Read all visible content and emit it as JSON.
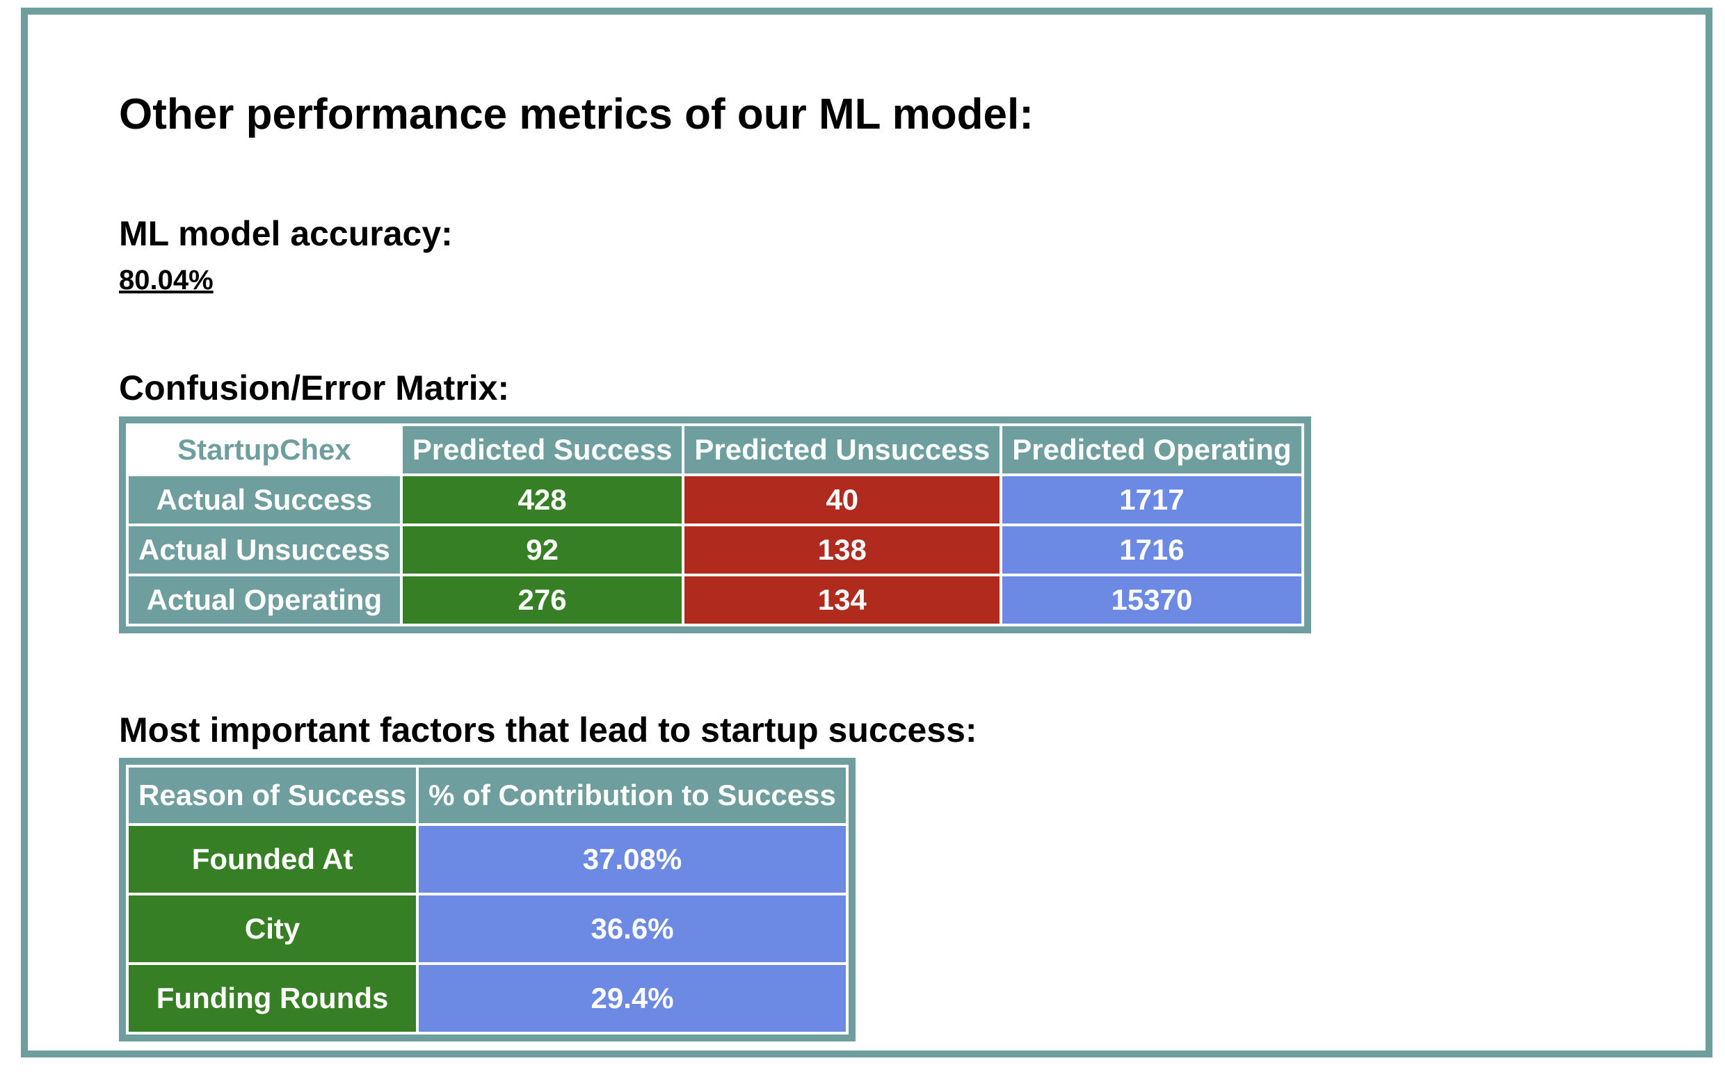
{
  "title": "Other performance metrics of our ML model:",
  "accuracy": {
    "heading": "ML model accuracy:",
    "value": "80.04%"
  },
  "confusion": {
    "heading": "Confusion/Error Matrix:",
    "corner_label": "StartupChex",
    "columns": [
      "Predicted Success",
      "Predicted Unsuccess",
      "Predicted Operating"
    ],
    "rows": [
      {
        "label": "Actual Success",
        "values": [
          "428",
          "40",
          "1717"
        ]
      },
      {
        "label": "Actual Unsuccess",
        "values": [
          "92",
          "138",
          "1716"
        ]
      },
      {
        "label": "Actual Operating",
        "values": [
          "276",
          "134",
          "15370"
        ]
      }
    ]
  },
  "factors": {
    "heading": "Most important factors that lead to startup success:",
    "columns": [
      "Reason of Success",
      "% of Contribution to Success"
    ],
    "rows": [
      {
        "reason": "Founded At",
        "percent": "37.08%"
      },
      {
        "reason": "City",
        "percent": "36.6%"
      },
      {
        "reason": "Funding Rounds",
        "percent": "29.4%"
      }
    ]
  },
  "colors": {
    "teal_border": "#6f9e9e",
    "success_green": "#367f24",
    "unsuccess_red": "#b02a1d",
    "operating_blue": "#6c8ae4"
  }
}
